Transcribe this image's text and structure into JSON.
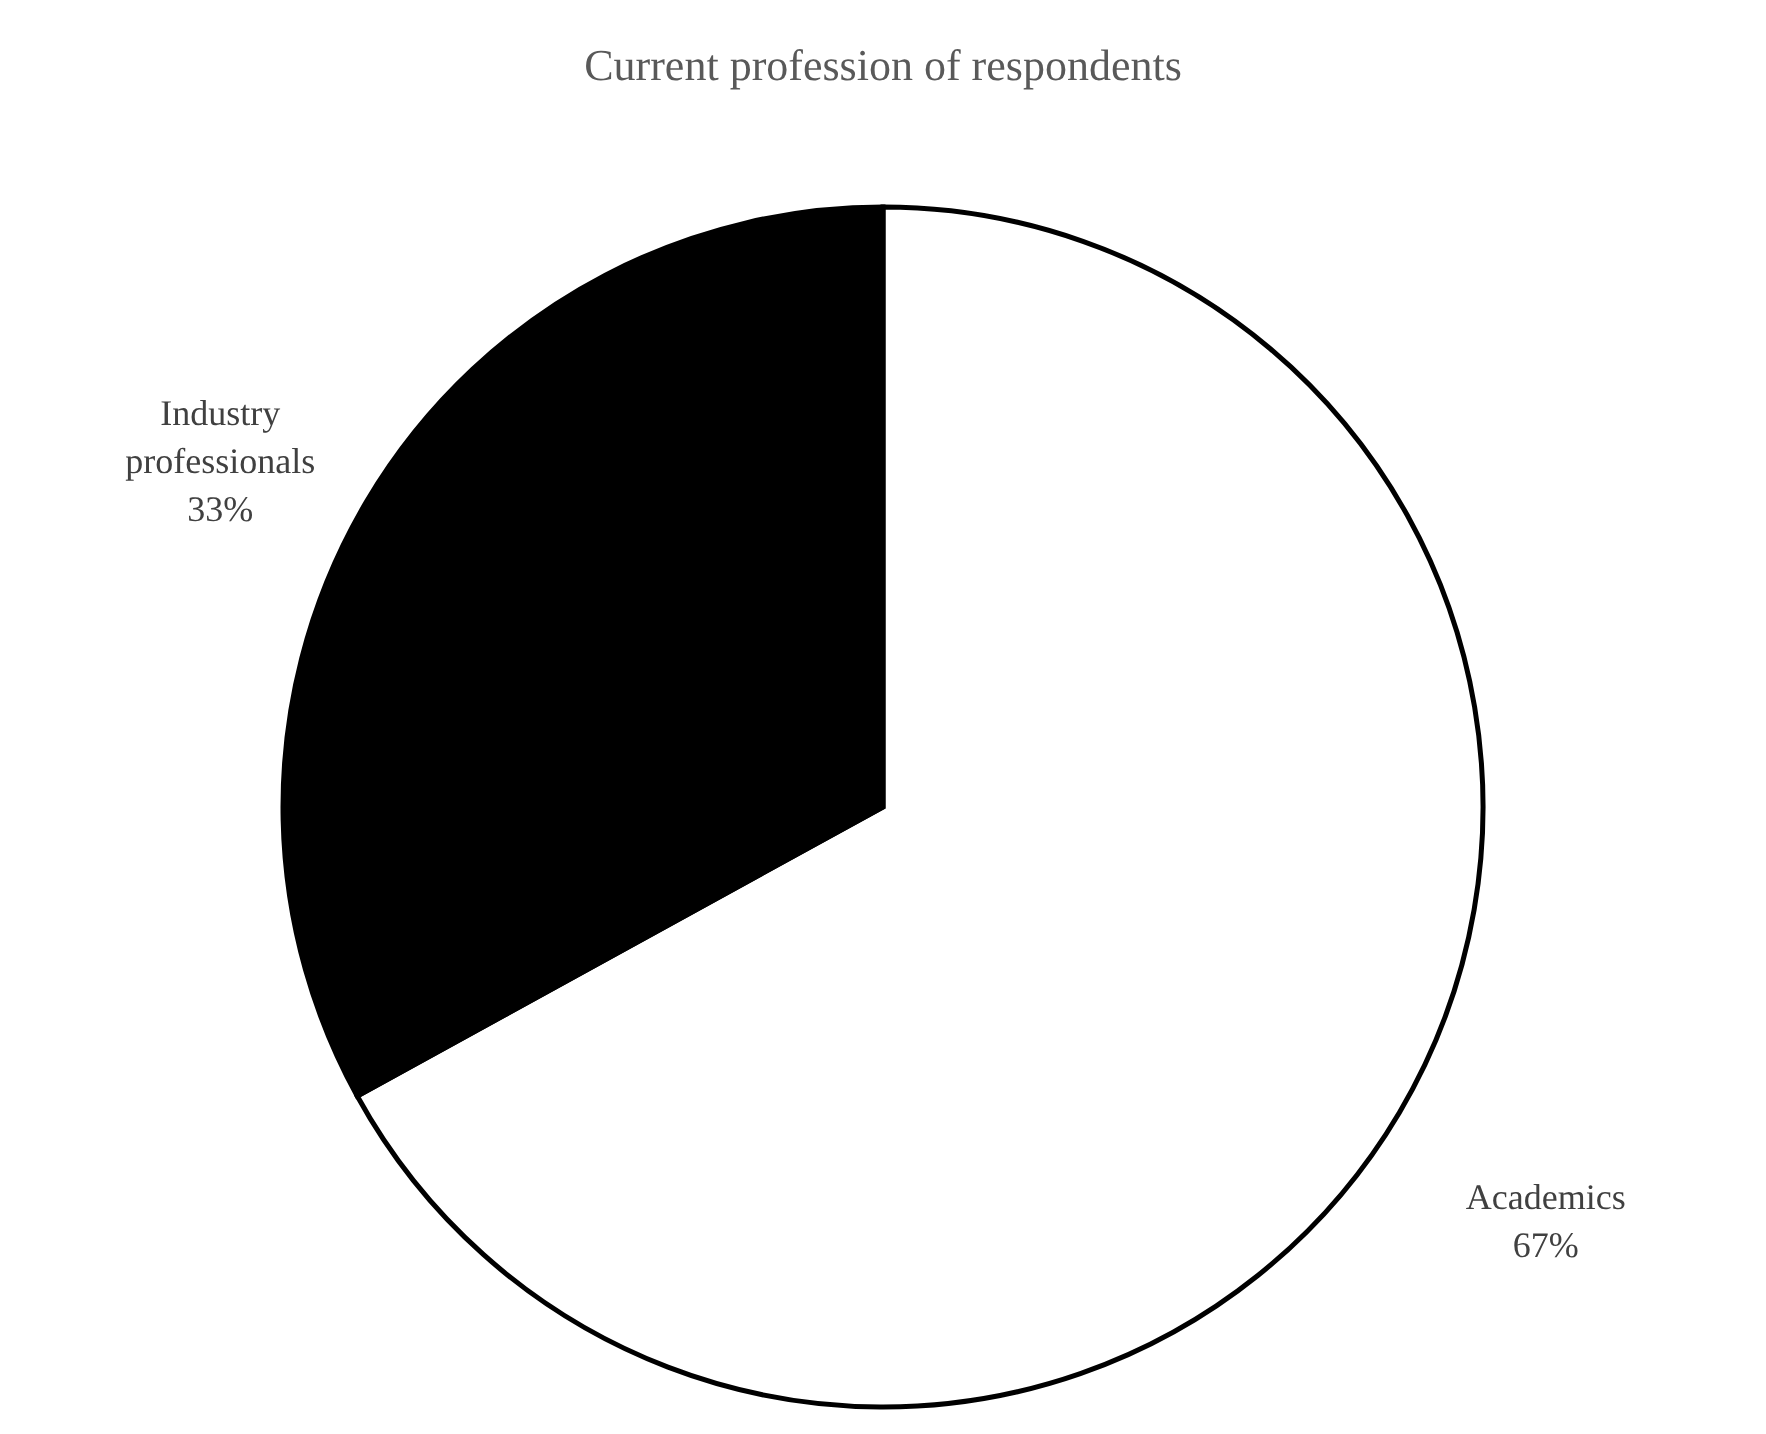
{
  "chart_data": {
    "type": "pie",
    "title": "Current profession of respondents",
    "categories": [
      "Academics",
      "Industry professionals"
    ],
    "values": [
      67,
      33
    ],
    "colors": [
      "#ffffff",
      "#000000"
    ],
    "value_labels": [
      "67%",
      "33%"
    ],
    "legend": false
  }
}
